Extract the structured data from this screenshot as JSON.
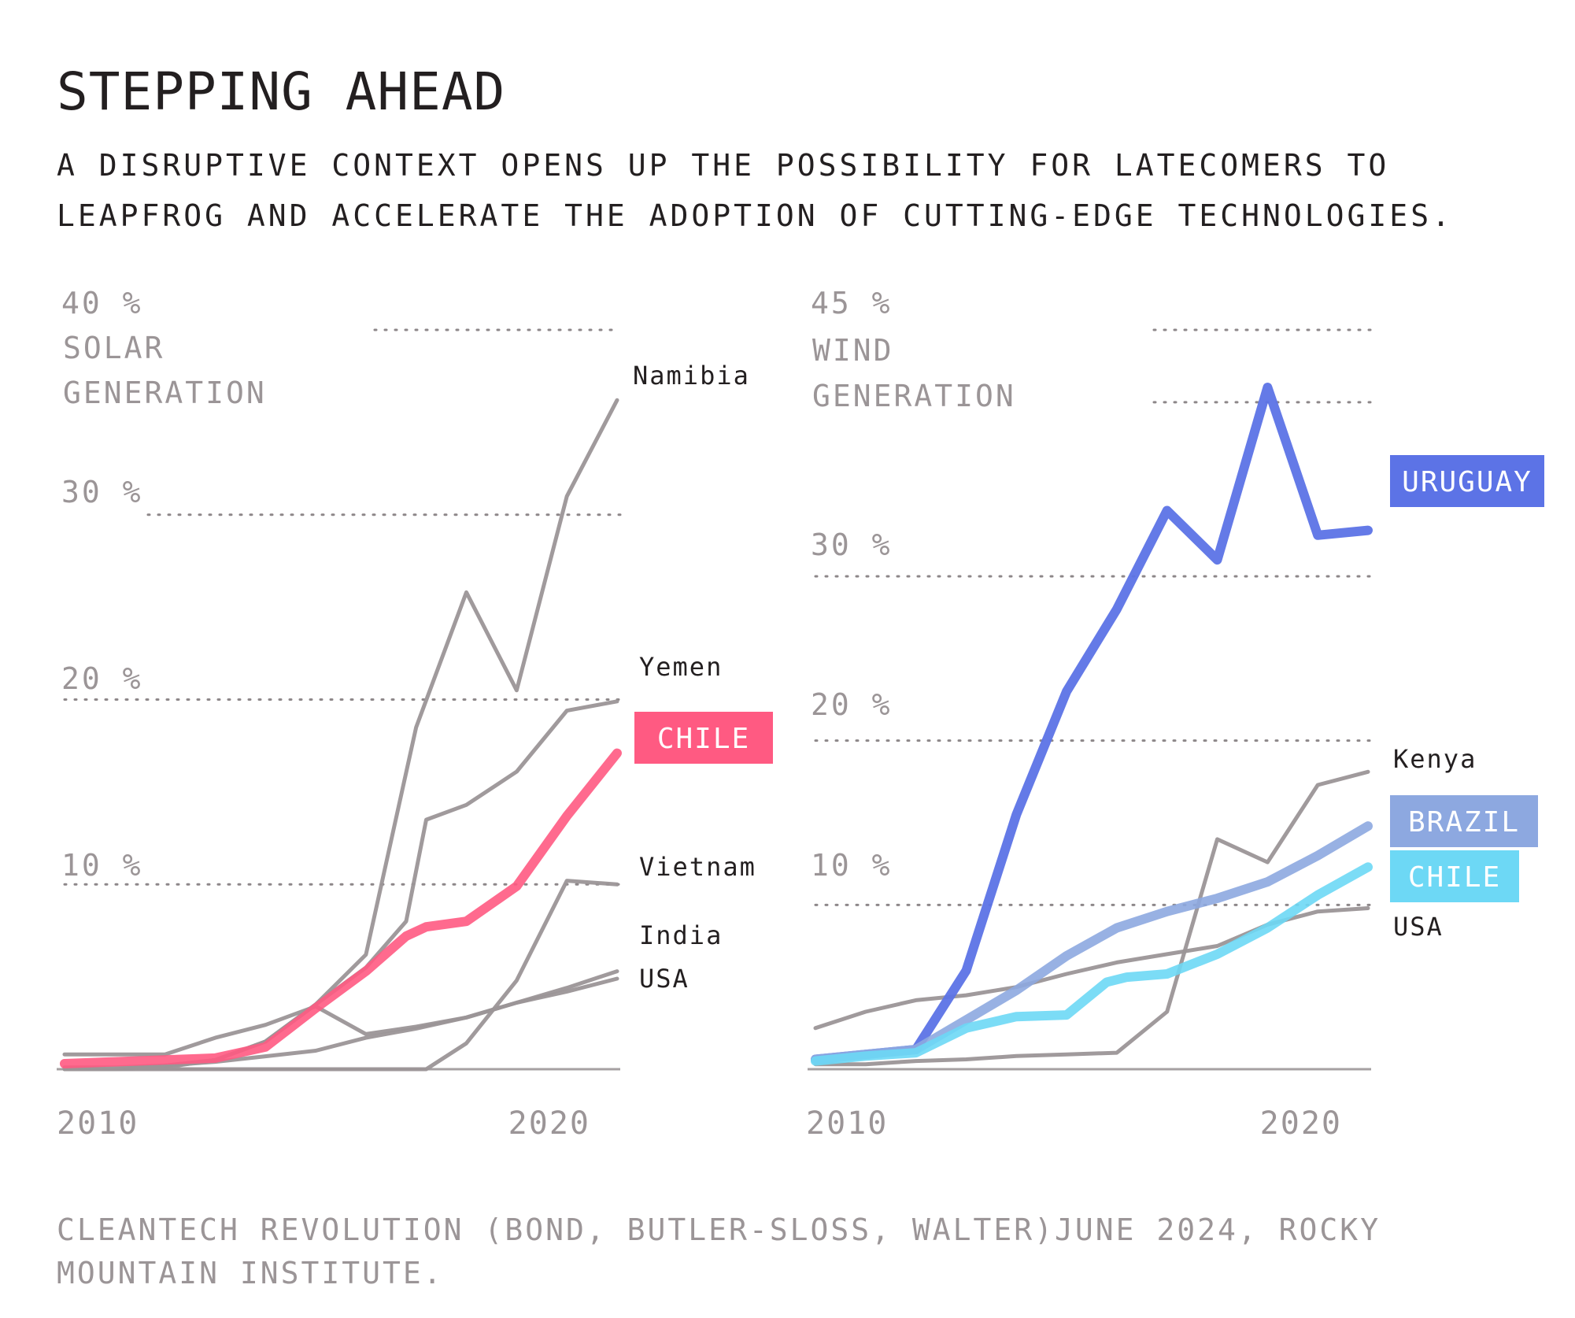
{
  "title": "STEPPING AHEAD",
  "subtitle": "A DISRUPTIVE CONTEXT OPENS UP THE POSSIBILITY FOR LATECOMERS TO LEAPFROG AND ACCELERATE THE ADOPTION OF CUTTING-EDGE TECHNOLOGIES.",
  "source": "CLEANTECH REVOLUTION (BOND, BUTLER-SLOSS, WALTER)JUNE 2024, ROCKY MOUNTAIN INSTITUTE.",
  "colors": {
    "gray_line": "#9b9597",
    "highlight_pink": "#ff5a82",
    "highlight_blue": "#5c73e6",
    "brazil_blue": "#8da8e0",
    "chile_cyan": "#6dd8f5"
  },
  "chart_data": [
    {
      "type": "line",
      "title": "SOLAR GENERATION",
      "ylabel": "SOLAR GENERATION",
      "unit": "%",
      "xlim": [
        2010,
        2022
      ],
      "ylim": [
        0,
        40
      ],
      "x_ticks": [
        "2010",
        "2020"
      ],
      "y_ticks": [
        "10 %",
        "20 %",
        "30 %",
        "40 %"
      ],
      "grid": "dotted horizontal",
      "series": [
        {
          "name": "Namibia",
          "highlight": false,
          "color": "#9b9597",
          "x": [
            2010,
            2011,
            2012,
            2013,
            2014,
            2015,
            2016,
            2017,
            2018,
            2019,
            2020,
            2021
          ],
          "y": [
            0,
            0,
            0.1,
            0.5,
            1.5,
            3.5,
            6.2,
            18.5,
            25.8,
            20.5,
            31,
            36.2
          ]
        },
        {
          "name": "Yemen",
          "highlight": false,
          "color": "#9b9597",
          "x": [
            2010,
            2011,
            2012,
            2013,
            2014,
            2015,
            2016,
            2016.8,
            2017.2,
            2018,
            2019,
            2020,
            2021
          ],
          "y": [
            0,
            0,
            0.2,
            0.5,
            1.5,
            3.5,
            5.5,
            8,
            13.5,
            14.3,
            16.1,
            19.4,
            19.9
          ]
        },
        {
          "name": "CHILE",
          "highlight": true,
          "color": "#ff5a82",
          "x": [
            2010,
            2011,
            2012,
            2013,
            2014,
            2015,
            2016,
            2016.8,
            2017.2,
            2018,
            2019,
            2020,
            2021
          ],
          "y": [
            0.3,
            0.4,
            0.5,
            0.6,
            1.2,
            3.3,
            5.3,
            7.2,
            7.7,
            8,
            9.9,
            13.7,
            17.1
          ]
        },
        {
          "name": "Vietnam",
          "highlight": false,
          "color": "#9b9597",
          "x": [
            2010,
            2011,
            2012,
            2013,
            2014,
            2015,
            2016,
            2016.8,
            2017.2,
            2018,
            2019,
            2020,
            2021
          ],
          "y": [
            0,
            0,
            0,
            0,
            0,
            0,
            0,
            0,
            0,
            1.4,
            4.8,
            10.2,
            10
          ]
        },
        {
          "name": "India",
          "highlight": false,
          "color": "#9b9597",
          "x": [
            2010,
            2011,
            2012,
            2013,
            2014,
            2015,
            2016,
            2017,
            2018,
            2019,
            2020,
            2021
          ],
          "y": [
            0.1,
            0.1,
            0.2,
            0.4,
            0.7,
            1,
            1.7,
            2.2,
            2.8,
            3.6,
            4.4,
            5.3
          ]
        },
        {
          "name": "USA",
          "highlight": false,
          "color": "#9b9597",
          "x": [
            2010,
            2011,
            2012,
            2013,
            2014,
            2015,
            2016,
            2017,
            2018,
            2019,
            2020,
            2021
          ],
          "y": [
            0.8,
            0.8,
            0.8,
            1.7,
            2.4,
            3.4,
            1.9,
            2.3,
            2.8,
            3.6,
            4.2,
            4.9
          ]
        }
      ]
    },
    {
      "type": "line",
      "title": "WIND GENERATION",
      "ylabel": "WIND GENERATION",
      "unit": "%",
      "xlim": [
        2010,
        2022
      ],
      "ylim": [
        0,
        45
      ],
      "x_ticks": [
        "2010",
        "2020"
      ],
      "y_ticks": [
        "10 %",
        "20 %",
        "30 %",
        "45 %"
      ],
      "grid": "dotted horizontal",
      "series": [
        {
          "name": "URUGUAY",
          "highlight": true,
          "color": "#5c73e6",
          "x": [
            2010,
            2011,
            2012,
            2013,
            2014,
            2015,
            2016,
            2017,
            2018,
            2019,
            2020,
            2021
          ],
          "y": [
            0.6,
            0.9,
            1.2,
            6,
            15.5,
            23,
            28,
            34,
            31,
            41.5,
            32.5,
            32.8
          ]
        },
        {
          "name": "Kenya",
          "highlight": false,
          "color": "#9b9597",
          "x": [
            2010,
            2011,
            2012,
            2013,
            2014,
            2015,
            2016,
            2017,
            2018,
            2019,
            2020,
            2021
          ],
          "y": [
            0.3,
            0.3,
            0.5,
            0.6,
            0.8,
            0.9,
            1,
            3.5,
            14,
            12.6,
            17.3,
            18.1
          ]
        },
        {
          "name": "BRAZIL",
          "highlight": true,
          "color": "#8da8e0",
          "x": [
            2010,
            2011,
            2012,
            2013,
            2014,
            2015,
            2016,
            2017,
            2018,
            2019,
            2020,
            2021
          ],
          "y": [
            0.6,
            0.9,
            1.2,
            3,
            4.8,
            6.9,
            8.6,
            9.6,
            10.4,
            11.4,
            13,
            14.8
          ]
        },
        {
          "name": "CHILE",
          "highlight": true,
          "color": "#6dd8f5",
          "x": [
            2010,
            2011,
            2012,
            2013,
            2014,
            2015,
            2015.8,
            2016.2,
            2017,
            2018,
            2019,
            2020,
            2021
          ],
          "y": [
            0.5,
            0.8,
            1,
            2.5,
            3.2,
            3.3,
            5.3,
            5.6,
            5.8,
            7,
            8.6,
            10.6,
            12.3
          ]
        },
        {
          "name": "USA",
          "highlight": false,
          "color": "#9b9597",
          "x": [
            2010,
            2011,
            2012,
            2013,
            2014,
            2015,
            2016,
            2017,
            2018,
            2019,
            2020,
            2021
          ],
          "y": [
            2.5,
            3.5,
            4.2,
            4.5,
            5,
            5.8,
            6.5,
            7,
            7.5,
            8.8,
            9.6,
            9.8
          ]
        }
      ]
    }
  ]
}
